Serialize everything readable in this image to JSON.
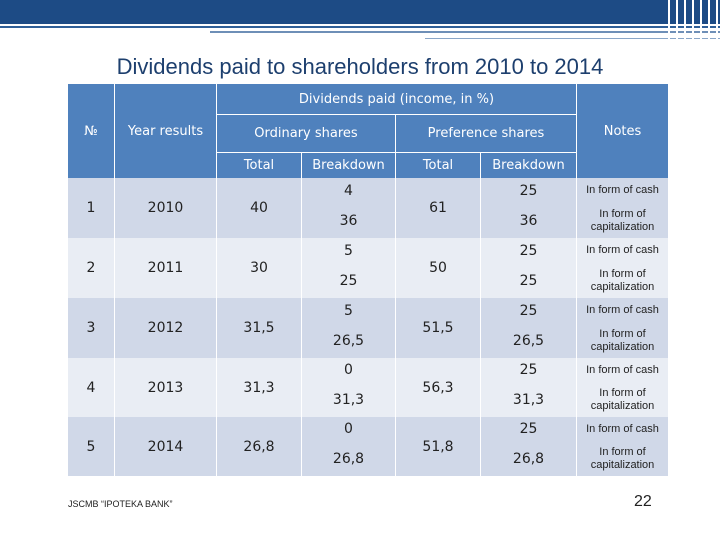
{
  "title": "Dividends paid to shareholders from 2010 to 2014",
  "header": {
    "group": "Dividends paid (income, in %)",
    "no": "№",
    "year": "Year results",
    "ordinary": "Ordinary shares",
    "preference": "Preference shares",
    "notes": "Notes",
    "ord_total": "Total",
    "ord_breakdown": "Breakdown",
    "pref_total": "Total",
    "pref_breakdown": "Breakdown"
  },
  "rows": [
    {
      "no": "1",
      "year": "2010",
      "ord_total": "40",
      "ord_b1": "4",
      "ord_b2": "36",
      "pref_total": "61",
      "pref_b1": "25",
      "pref_b2": "36",
      "note1": "In form of cash",
      "note2": "In form of capitalization"
    },
    {
      "no": "2",
      "year": "2011",
      "ord_total": "30",
      "ord_b1": "5",
      "ord_b2": "25",
      "pref_total": "50",
      "pref_b1": "25",
      "pref_b2": "25",
      "note1": "In form of cash",
      "note2": "In form of capitalization"
    },
    {
      "no": "3",
      "year": "2012",
      "ord_total": "31,5",
      "ord_b1": "5",
      "ord_b2": "26,5",
      "pref_total": "51,5",
      "pref_b1": "25",
      "pref_b2": "26,5",
      "note1": "In form of cash",
      "note2": "In form of capitalization"
    },
    {
      "no": "4",
      "year": "2013",
      "ord_total": "31,3",
      "ord_b1": "0",
      "ord_b2": "31,3",
      "pref_total": "56,3",
      "pref_b1": "25",
      "pref_b2": "31,3",
      "note1": "In form of cash",
      "note2": "In form of capitalization"
    },
    {
      "no": "5",
      "year": "2014",
      "ord_total": "26,8",
      "ord_b1": "0",
      "ord_b2": "26,8",
      "pref_total": "51,8",
      "pref_b1": "25",
      "pref_b2": "26,8",
      "note1": "In form of cash",
      "note2": "In form of capitalization"
    }
  ],
  "footer": "JSCMB “IPOTEKA BANK”",
  "page_number": "22",
  "colors": {
    "header": "#4f81bd",
    "band_dark": "#d0d8e8",
    "band_light": "#e9edf4",
    "title": "#1d3f6e"
  }
}
